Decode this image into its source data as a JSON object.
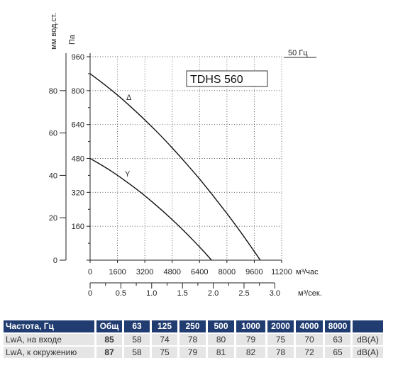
{
  "chart_data": {
    "type": "line",
    "title": "TDHS 560",
    "annotation": "50 Гц",
    "grid": true,
    "x": {
      "label": "м³/час",
      "range": [
        0,
        11200
      ],
      "ticks": [
        0,
        1600,
        3200,
        4800,
        6400,
        8000,
        9600,
        11200
      ]
    },
    "x2": {
      "label": "м³/сек.",
      "ticks": [
        "0",
        "0.5",
        "1.0",
        "1.5",
        "2.0",
        "2.5",
        "3.0"
      ]
    },
    "y": {
      "label": "Па",
      "range": [
        0,
        960
      ],
      "ticks": [
        160,
        320,
        480,
        640,
        800,
        960
      ]
    },
    "y2": {
      "label": "мм вод.ст.",
      "ticks": [
        0,
        20,
        40,
        60,
        80
      ]
    },
    "series": [
      {
        "name": "Δ",
        "x": [
          0,
          800,
          1600,
          2400,
          3200,
          4000,
          4800,
          5600,
          6400,
          7200,
          8000,
          8800,
          9600,
          9950
        ],
        "y": [
          880,
          831,
          779,
          722,
          662,
          598,
          530,
          458,
          383,
          303,
          220,
          133,
          41,
          0
        ]
      },
      {
        "name": "Y",
        "x": [
          0,
          600,
          1200,
          1800,
          2400,
          3000,
          3600,
          4200,
          4800,
          5400,
          6000,
          6600,
          7100
        ],
        "y": [
          480,
          452,
          422,
          389,
          354,
          317,
          277,
          235,
          191,
          145,
          96,
          45,
          0
        ]
      }
    ]
  },
  "sound_table": {
    "headers": [
      "Частота, Гц",
      "Общ",
      "63",
      "125",
      "250",
      "500",
      "1000",
      "2000",
      "4000",
      "8000"
    ],
    "rows": [
      {
        "label": "LwA, на входе",
        "total": "85",
        "values": [
          "58",
          "74",
          "78",
          "80",
          "79",
          "75",
          "70",
          "63"
        ],
        "unit": "dB(A)"
      },
      {
        "label": "LwA, к окружению",
        "total": "87",
        "values": [
          "58",
          "75",
          "79",
          "81",
          "82",
          "78",
          "72",
          "65"
        ],
        "unit": "dB(A)"
      }
    ]
  }
}
